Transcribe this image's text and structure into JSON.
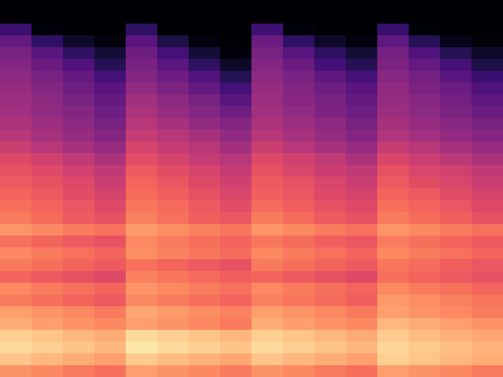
{
  "chart_data": {
    "type": "heatmap",
    "tick_labels": false,
    "zlim": [
      -80,
      0
    ],
    "z": [
      [
        -80,
        -80,
        -80,
        -80,
        -80,
        -80,
        -80,
        -80,
        -80,
        -80,
        -80,
        -80,
        -80,
        -80,
        -80,
        -80
      ],
      [
        -80,
        -80,
        -80,
        -80,
        -80,
        -80,
        -80,
        -80,
        -80,
        -80,
        -80,
        -80,
        -80,
        -80,
        -80,
        -80
      ],
      [
        -64,
        -78,
        -80,
        -80,
        -66,
        -80,
        -80,
        -80,
        -63,
        -78,
        -80,
        -80,
        -65,
        -79,
        -80,
        -80
      ],
      [
        -56,
        -66,
        -74,
        -78,
        -58,
        -70,
        -78,
        -80,
        -55,
        -66,
        -74,
        -78,
        -57,
        -68,
        -76,
        -79
      ],
      [
        -52,
        -58,
        -66,
        -72,
        -54,
        -62,
        -72,
        -78,
        -52,
        -58,
        -66,
        -72,
        -53,
        -60,
        -68,
        -74
      ],
      [
        -50,
        -55,
        -60,
        -68,
        -52,
        -58,
        -66,
        -74,
        -50,
        -55,
        -62,
        -68,
        -51,
        -56,
        -62,
        -70
      ],
      [
        -48,
        -52,
        -56,
        -62,
        -50,
        -54,
        -60,
        -68,
        -48,
        -52,
        -57,
        -62,
        -49,
        -53,
        -58,
        -64
      ],
      [
        -46,
        -50,
        -54,
        -58,
        -47,
        -51,
        -56,
        -62,
        -46,
        -50,
        -54,
        -58,
        -47,
        -51,
        -55,
        -60
      ],
      [
        -45,
        -48,
        -52,
        -56,
        -44,
        -48,
        -52,
        -58,
        -45,
        -49,
        -52,
        -56,
        -46,
        -49,
        -53,
        -57
      ],
      [
        -44,
        -47,
        -50,
        -54,
        -42,
        -46,
        -50,
        -54,
        -44,
        -47,
        -51,
        -54,
        -45,
        -48,
        -51,
        -55
      ],
      [
        -42,
        -45,
        -48,
        -52,
        -40,
        -43,
        -47,
        -50,
        -42,
        -45,
        -48,
        -52,
        -43,
        -46,
        -49,
        -52
      ],
      [
        -40,
        -43,
        -46,
        -50,
        -37,
        -40,
        -43,
        -47,
        -40,
        -43,
        -46,
        -50,
        -41,
        -44,
        -47,
        -50
      ],
      [
        -36,
        -40,
        -43,
        -46,
        -34,
        -37,
        -40,
        -44,
        -36,
        -40,
        -43,
        -46,
        -37,
        -40,
        -43,
        -46
      ],
      [
        -32,
        -35,
        -38,
        -42,
        -31,
        -34,
        -37,
        -40,
        -32,
        -35,
        -38,
        -42,
        -33,
        -36,
        -39,
        -42
      ],
      [
        -30,
        -32,
        -35,
        -38,
        -28,
        -31,
        -34,
        -37,
        -30,
        -33,
        -36,
        -38,
        -30,
        -33,
        -35,
        -38
      ],
      [
        -28,
        -30,
        -32,
        -36,
        -26,
        -29,
        -32,
        -35,
        -28,
        -30,
        -33,
        -36,
        -28,
        -31,
        -33,
        -36
      ],
      [
        -26,
        -28,
        -31,
        -34,
        -25,
        -27,
        -30,
        -33,
        -27,
        -29,
        -32,
        -34,
        -26,
        -28,
        -31,
        -34
      ],
      [
        -24,
        -26,
        -29,
        -32,
        -23,
        -25,
        -28,
        -31,
        -25,
        -27,
        -30,
        -32,
        -24,
        -26,
        -29,
        -32
      ],
      [
        -22,
        -25,
        -28,
        -30,
        -21,
        -24,
        -27,
        -29,
        -22,
        -25,
        -28,
        -30,
        -22,
        -25,
        -27,
        -30
      ],
      [
        -18,
        -20,
        -22,
        -24,
        -17,
        -19,
        -21,
        -23,
        -18,
        -20,
        -22,
        -24,
        -18,
        -20,
        -22,
        -24
      ],
      [
        -24,
        -26,
        -28,
        -30,
        -20,
        -22,
        -24,
        -26,
        -23,
        -25,
        -27,
        -29,
        -22,
        -24,
        -26,
        -28
      ],
      [
        -20,
        -22,
        -24,
        -26,
        -19,
        -21,
        -23,
        -25,
        -20,
        -22,
        -24,
        -26,
        -20,
        -22,
        -24,
        -26
      ],
      [
        -22,
        -24,
        -26,
        -28,
        -24,
        -26,
        -28,
        -30,
        -22,
        -24,
        -26,
        -28,
        -23,
        -25,
        -27,
        -29
      ],
      [
        -26,
        -28,
        -30,
        -32,
        -21,
        -23,
        -25,
        -27,
        -26,
        -28,
        -30,
        -32,
        -24,
        -26,
        -28,
        -30
      ],
      [
        -20,
        -22,
        -24,
        -26,
        -18,
        -20,
        -22,
        -24,
        -20,
        -22,
        -24,
        -26,
        -20,
        -22,
        -24,
        -26
      ],
      [
        -22,
        -24,
        -26,
        -28,
        -20,
        -22,
        -24,
        -26,
        -21,
        -23,
        -25,
        -27,
        -17,
        -19,
        -21,
        -23
      ],
      [
        -16,
        -18,
        -20,
        -22,
        -15,
        -17,
        -19,
        -21,
        -16,
        -18,
        -20,
        -22,
        -16,
        -18,
        -20,
        -22
      ],
      [
        -14,
        -16,
        -18,
        -20,
        -16,
        -18,
        -20,
        -22,
        -14,
        -16,
        -18,
        -20,
        -12,
        -14,
        -16,
        -18
      ],
      [
        -8,
        -10,
        -12,
        -14,
        -6,
        -8,
        -10,
        -12,
        -8,
        -10,
        -12,
        -14,
        -9,
        -11,
        -13,
        -15
      ],
      [
        -6,
        -8,
        -10,
        -12,
        -4,
        -6,
        -8,
        -10,
        -6,
        -8,
        -10,
        -12,
        -7,
        -9,
        -11,
        -13
      ],
      [
        -10,
        -12,
        -14,
        -16,
        -9,
        -11,
        -13,
        -15,
        -10,
        -12,
        -14,
        -16,
        -8,
        -10,
        -12,
        -14
      ],
      [
        -18,
        -20,
        -22,
        -24,
        -16,
        -18,
        -20,
        -22,
        -18,
        -20,
        -22,
        -24,
        -16,
        -18,
        -20,
        -22
      ]
    ]
  }
}
